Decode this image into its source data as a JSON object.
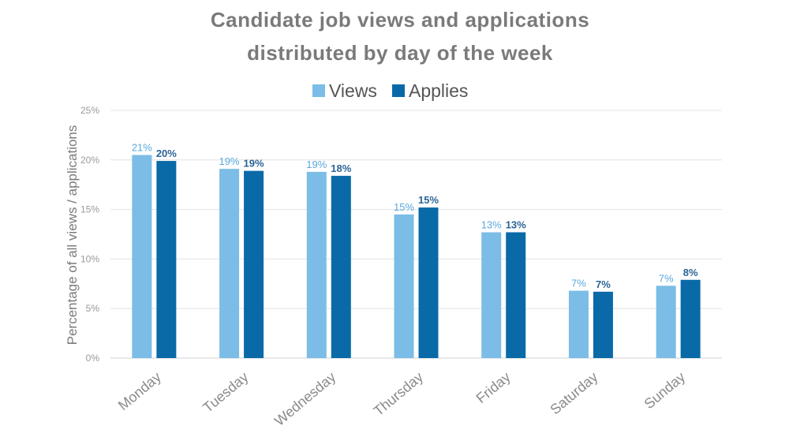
{
  "chart_data": {
    "type": "bar",
    "title_lines": [
      "Candidate job views and applications",
      "distributed by day of the week"
    ],
    "xlabel": "",
    "ylabel": "Percentage of all views / applications",
    "ylim": [
      0,
      25
    ],
    "yticks": [
      0,
      5,
      10,
      15,
      20,
      25
    ],
    "ytick_labels": [
      "0%",
      "5%",
      "10%",
      "15%",
      "20%",
      "25%"
    ],
    "grid": true,
    "legend_placement": "top-center",
    "categories": [
      "Monday",
      "Tuesday",
      "Wednesday",
      "Thursday",
      "Friday",
      "Saturday",
      "Sunday"
    ],
    "series": [
      {
        "name": "Views",
        "color": "#7bbde6",
        "values": [
          20.5,
          19.1,
          18.8,
          14.5,
          12.7,
          6.8,
          7.3
        ],
        "labels": [
          "21%",
          "19%",
          "19%",
          "15%",
          "13%",
          "7%",
          "7%"
        ]
      },
      {
        "name": "Applies",
        "color": "#0a6aa8",
        "values": [
          19.9,
          18.9,
          18.4,
          15.2,
          12.7,
          6.7,
          7.9
        ],
        "labels": [
          "20%",
          "19%",
          "18%",
          "15%",
          "13%",
          "7%",
          "8%"
        ]
      }
    ]
  }
}
